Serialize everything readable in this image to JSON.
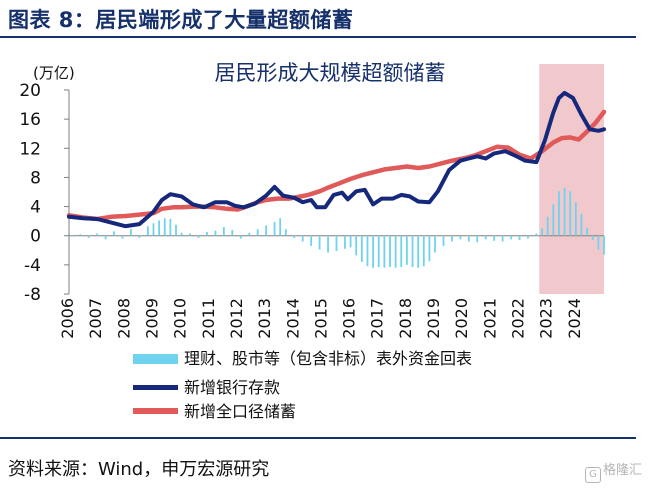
{
  "header": {
    "figure_title": "图表 8：居民端形成了大量超额储蓄"
  },
  "footer": {
    "source": "资料来源：Wind，申万宏源研究",
    "watermark": "格隆汇",
    "watermark_icon": "logo-icon"
  },
  "colors": {
    "deposit": "#16287c",
    "savings": "#e05a5a",
    "offbalance": "#6fd2ef",
    "shade": "#f1c9cc",
    "title": "#16306b"
  },
  "chart_data": {
    "type": "bar+line",
    "title": "居民形成大规模超额储蓄",
    "ylabel": "(万亿)",
    "ylim": [
      -8,
      20
    ],
    "yticks": [
      "20",
      "16",
      "12",
      "8",
      "4",
      "0",
      "-4",
      "-8"
    ],
    "xlim": [
      2006,
      2025
    ],
    "xticks": [
      "2006",
      "2007",
      "2008",
      "2009",
      "2010",
      "2011",
      "2012",
      "2013",
      "2014",
      "2015",
      "2016",
      "2017",
      "2018",
      "2019",
      "2020",
      "2021",
      "2022",
      "2023",
      "2024"
    ],
    "shaded_range": [
      2022.7,
      2025
    ],
    "legend": [
      "理财、股市等（包含非标）表外资金回表",
      "新增银行存款",
      "新增全口径储蓄"
    ],
    "series": [
      {
        "name": "理财、股市等（包含非标）表外资金回表",
        "kind": "bar",
        "points": [
          [
            2006.1,
            0.1
          ],
          [
            2006.4,
            0.2
          ],
          [
            2006.7,
            -0.3
          ],
          [
            2007.0,
            0.3
          ],
          [
            2007.3,
            -0.5
          ],
          [
            2007.6,
            0.6
          ],
          [
            2007.9,
            -0.4
          ],
          [
            2008.2,
            0.9
          ],
          [
            2008.5,
            -0.3
          ],
          [
            2008.8,
            1.3
          ],
          [
            2009.0,
            1.7
          ],
          [
            2009.2,
            2.1
          ],
          [
            2009.4,
            2.4
          ],
          [
            2009.6,
            2.3
          ],
          [
            2009.8,
            1.5
          ],
          [
            2010.0,
            0.4
          ],
          [
            2010.3,
            0.3
          ],
          [
            2010.6,
            -0.3
          ],
          [
            2010.9,
            0.5
          ],
          [
            2011.2,
            0.7
          ],
          [
            2011.5,
            1.2
          ],
          [
            2011.8,
            0.8
          ],
          [
            2012.1,
            -0.4
          ],
          [
            2012.4,
            0.4
          ],
          [
            2012.7,
            0.9
          ],
          [
            2013.0,
            1.4
          ],
          [
            2013.3,
            1.9
          ],
          [
            2013.5,
            2.4
          ],
          [
            2013.7,
            0.9
          ],
          [
            2014.0,
            -0.3
          ],
          [
            2014.3,
            -0.8
          ],
          [
            2014.6,
            -1.4
          ],
          [
            2014.9,
            -1.9
          ],
          [
            2015.2,
            -2.3
          ],
          [
            2015.5,
            -2.1
          ],
          [
            2015.8,
            -1.8
          ],
          [
            2016.0,
            -1.6
          ],
          [
            2016.2,
            -2.7
          ],
          [
            2016.4,
            -3.6
          ],
          [
            2016.6,
            -4.2
          ],
          [
            2016.8,
            -4.4
          ],
          [
            2017.0,
            -4.3
          ],
          [
            2017.2,
            -4.4
          ],
          [
            2017.4,
            -4.3
          ],
          [
            2017.6,
            -4.4
          ],
          [
            2017.8,
            -4.3
          ],
          [
            2018.0,
            -4.0
          ],
          [
            2018.2,
            -4.3
          ],
          [
            2018.4,
            -4.4
          ],
          [
            2018.6,
            -4.2
          ],
          [
            2018.8,
            -3.5
          ],
          [
            2019.0,
            -2.3
          ],
          [
            2019.3,
            -1.4
          ],
          [
            2019.6,
            -0.8
          ],
          [
            2019.9,
            -0.5
          ],
          [
            2020.2,
            -0.8
          ],
          [
            2020.5,
            -0.9
          ],
          [
            2020.8,
            -0.5
          ],
          [
            2021.1,
            -0.7
          ],
          [
            2021.4,
            -0.8
          ],
          [
            2021.7,
            -0.5
          ],
          [
            2022.0,
            -0.6
          ],
          [
            2022.3,
            -0.4
          ],
          [
            2022.6,
            0.3
          ],
          [
            2022.8,
            1.0
          ],
          [
            2023.0,
            2.6
          ],
          [
            2023.2,
            4.3
          ],
          [
            2023.4,
            6.1
          ],
          [
            2023.6,
            6.6
          ],
          [
            2023.8,
            6.1
          ],
          [
            2024.0,
            4.6
          ],
          [
            2024.2,
            3.0
          ],
          [
            2024.4,
            1.1
          ],
          [
            2024.6,
            -0.6
          ],
          [
            2024.8,
            -1.9
          ],
          [
            2025.0,
            -2.6
          ]
        ]
      },
      {
        "name": "新增银行存款",
        "kind": "line",
        "points": [
          [
            2006.0,
            2.6
          ],
          [
            2006.5,
            2.4
          ],
          [
            2007.0,
            2.3
          ],
          [
            2007.5,
            1.8
          ],
          [
            2008.0,
            1.3
          ],
          [
            2008.5,
            1.6
          ],
          [
            2009.0,
            3.3
          ],
          [
            2009.3,
            4.9
          ],
          [
            2009.6,
            5.7
          ],
          [
            2010.0,
            5.4
          ],
          [
            2010.4,
            4.3
          ],
          [
            2010.8,
            3.9
          ],
          [
            2011.2,
            4.6
          ],
          [
            2011.6,
            4.6
          ],
          [
            2011.9,
            4.1
          ],
          [
            2012.2,
            3.9
          ],
          [
            2012.6,
            4.4
          ],
          [
            2013.0,
            5.5
          ],
          [
            2013.3,
            6.7
          ],
          [
            2013.6,
            5.5
          ],
          [
            2014.0,
            5.2
          ],
          [
            2014.3,
            4.6
          ],
          [
            2014.6,
            4.9
          ],
          [
            2014.8,
            3.9
          ],
          [
            2015.1,
            3.9
          ],
          [
            2015.4,
            5.6
          ],
          [
            2015.7,
            5.9
          ],
          [
            2015.9,
            5.0
          ],
          [
            2016.2,
            6.1
          ],
          [
            2016.5,
            6.3
          ],
          [
            2016.8,
            4.3
          ],
          [
            2017.1,
            5.1
          ],
          [
            2017.5,
            5.1
          ],
          [
            2017.8,
            5.6
          ],
          [
            2018.1,
            5.4
          ],
          [
            2018.4,
            4.7
          ],
          [
            2018.8,
            4.6
          ],
          [
            2019.1,
            6.1
          ],
          [
            2019.5,
            9.0
          ],
          [
            2019.9,
            10.3
          ],
          [
            2020.2,
            10.6
          ],
          [
            2020.5,
            10.9
          ],
          [
            2020.8,
            10.6
          ],
          [
            2021.1,
            11.3
          ],
          [
            2021.5,
            11.6
          ],
          [
            2021.9,
            10.9
          ],
          [
            2022.2,
            10.3
          ],
          [
            2022.6,
            10.1
          ],
          [
            2022.9,
            13.1
          ],
          [
            2023.2,
            16.9
          ],
          [
            2023.4,
            18.9
          ],
          [
            2023.6,
            19.6
          ],
          [
            2023.9,
            18.9
          ],
          [
            2024.2,
            16.6
          ],
          [
            2024.5,
            14.6
          ],
          [
            2024.8,
            14.4
          ],
          [
            2025.0,
            14.6
          ]
        ]
      },
      {
        "name": "新增全口径储蓄",
        "kind": "line",
        "points": [
          [
            2006.0,
            2.8
          ],
          [
            2006.5,
            2.5
          ],
          [
            2007.0,
            2.3
          ],
          [
            2007.5,
            2.6
          ],
          [
            2008.0,
            2.7
          ],
          [
            2008.5,
            2.9
          ],
          [
            2009.0,
            3.1
          ],
          [
            2009.3,
            3.7
          ],
          [
            2009.7,
            3.9
          ],
          [
            2010.0,
            3.9
          ],
          [
            2010.4,
            4.0
          ],
          [
            2010.8,
            4.0
          ],
          [
            2011.2,
            3.9
          ],
          [
            2011.6,
            3.7
          ],
          [
            2012.0,
            3.6
          ],
          [
            2012.3,
            4.0
          ],
          [
            2012.7,
            4.6
          ],
          [
            2013.0,
            4.9
          ],
          [
            2013.4,
            5.1
          ],
          [
            2013.8,
            5.1
          ],
          [
            2014.1,
            5.3
          ],
          [
            2014.5,
            5.6
          ],
          [
            2014.9,
            6.1
          ],
          [
            2015.2,
            6.6
          ],
          [
            2015.6,
            7.2
          ],
          [
            2016.0,
            7.8
          ],
          [
            2016.4,
            8.3
          ],
          [
            2016.8,
            8.7
          ],
          [
            2017.2,
            9.1
          ],
          [
            2017.6,
            9.3
          ],
          [
            2018.0,
            9.5
          ],
          [
            2018.4,
            9.3
          ],
          [
            2018.8,
            9.5
          ],
          [
            2019.2,
            9.9
          ],
          [
            2019.6,
            10.3
          ],
          [
            2020.0,
            10.6
          ],
          [
            2020.4,
            11.0
          ],
          [
            2020.8,
            11.6
          ],
          [
            2021.2,
            12.2
          ],
          [
            2021.6,
            12.1
          ],
          [
            2022.0,
            11.1
          ],
          [
            2022.4,
            10.6
          ],
          [
            2022.8,
            11.6
          ],
          [
            2023.2,
            12.8
          ],
          [
            2023.5,
            13.4
          ],
          [
            2023.8,
            13.5
          ],
          [
            2024.1,
            13.2
          ],
          [
            2024.4,
            14.3
          ],
          [
            2024.7,
            15.5
          ],
          [
            2025.0,
            17.0
          ]
        ]
      }
    ]
  }
}
